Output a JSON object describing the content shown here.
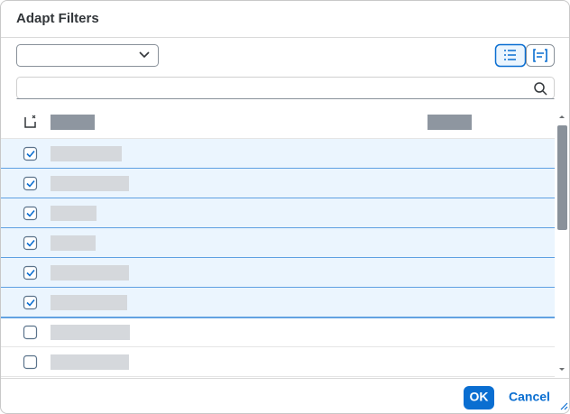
{
  "header": {
    "title": "Adapt Filters"
  },
  "table": {
    "rows": [
      {
        "checked": true
      },
      {
        "checked": true
      },
      {
        "checked": true
      },
      {
        "checked": true
      },
      {
        "checked": true
      },
      {
        "checked": true
      },
      {
        "checked": false
      },
      {
        "checked": false
      }
    ]
  },
  "footer": {
    "ok": "OK",
    "cancel": "Cancel"
  }
}
